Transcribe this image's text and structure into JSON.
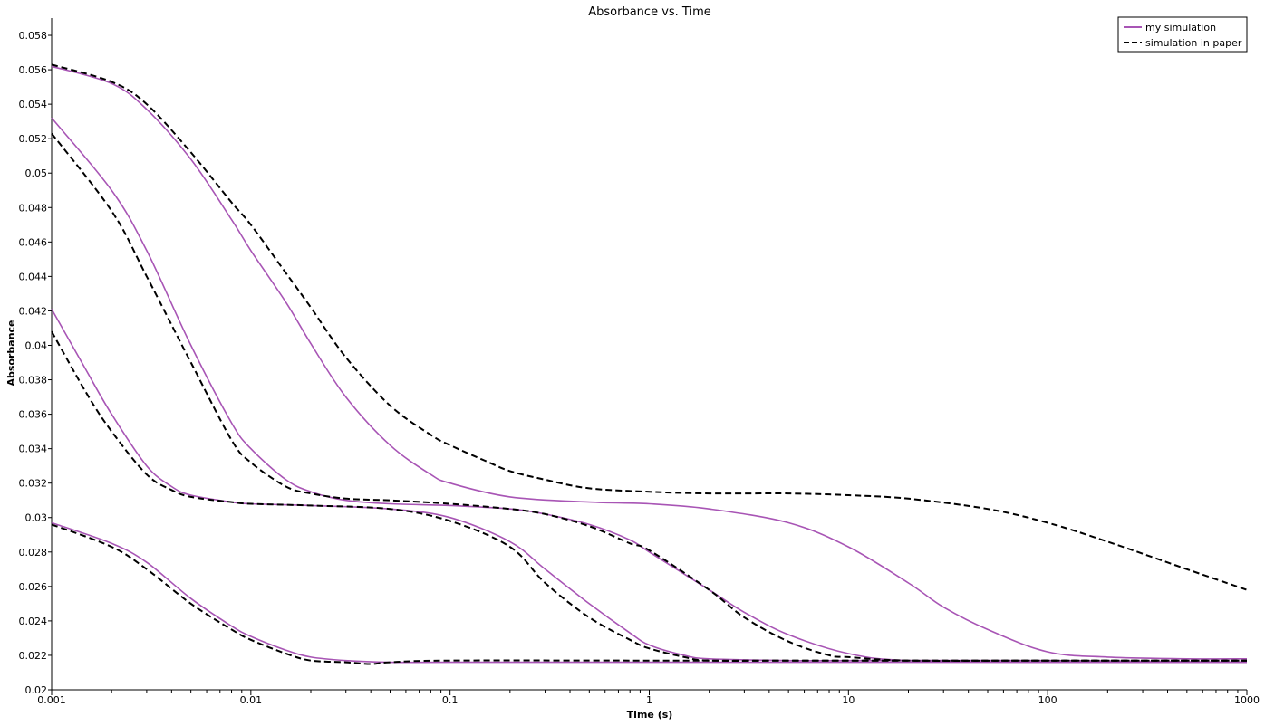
{
  "chart_data": {
    "type": "line",
    "title": "Absorbance vs. Time",
    "xlabel": "Time (s)",
    "ylabel": "Absorbance",
    "xscale": "log",
    "xlim": [
      0.001,
      1000
    ],
    "ylim": [
      0.02,
      0.059
    ],
    "x_ticks": [
      "0.001",
      "0.01",
      "0.1",
      "1",
      "10",
      "100",
      "1000"
    ],
    "y_ticks": [
      "0.02",
      "0.022",
      "0.024",
      "0.026",
      "0.028",
      "0.03",
      "0.032",
      "0.034",
      "0.036",
      "0.038",
      "0.04",
      "0.042",
      "0.044",
      "0.046",
      "0.048",
      "0.05",
      "0.052",
      "0.054",
      "0.056",
      "0.058"
    ],
    "grid": false,
    "legend": {
      "position": "top-right",
      "entries": [
        {
          "name": "my simulation",
          "color": "#a855b5",
          "style": "solid"
        },
        {
          "name": "simulation in paper",
          "color": "#000000",
          "style": "dashed"
        }
      ]
    },
    "series": [
      {
        "group": "my simulation",
        "color": "#a855b5",
        "style": "solid",
        "x": [
          0.001,
          0.002,
          0.003,
          0.005,
          0.008,
          0.01,
          0.015,
          0.02,
          0.03,
          0.05,
          0.08,
          0.1,
          0.2,
          0.5,
          1,
          2,
          5,
          10,
          20,
          30,
          50,
          100,
          200,
          500,
          1000
        ],
        "y": [
          0.0562,
          0.0552,
          0.0537,
          0.0508,
          0.0473,
          0.0455,
          0.0425,
          0.0401,
          0.037,
          0.0342,
          0.0325,
          0.032,
          0.0312,
          0.0309,
          0.0308,
          0.0305,
          0.0297,
          0.0283,
          0.0262,
          0.0248,
          0.0235,
          0.0222,
          0.0219,
          0.0218,
          0.0218
        ]
      },
      {
        "group": "my simulation",
        "color": "#a855b5",
        "style": "solid",
        "x": [
          0.001,
          0.002,
          0.003,
          0.005,
          0.008,
          0.01,
          0.015,
          0.02,
          0.03,
          0.05,
          0.1,
          0.2,
          0.3,
          0.5,
          0.8,
          1,
          2,
          3,
          5,
          10,
          20,
          100,
          1000
        ],
        "y": [
          0.0532,
          0.049,
          0.0455,
          0.04,
          0.0355,
          0.034,
          0.0322,
          0.0315,
          0.031,
          0.0308,
          0.0307,
          0.0305,
          0.0302,
          0.0296,
          0.0287,
          0.028,
          0.0258,
          0.0245,
          0.0232,
          0.0221,
          0.0217,
          0.0216,
          0.0216
        ]
      },
      {
        "group": "my simulation",
        "color": "#a855b5",
        "style": "solid",
        "x": [
          0.001,
          0.0015,
          0.002,
          0.003,
          0.004,
          0.005,
          0.008,
          0.01,
          0.02,
          0.05,
          0.1,
          0.2,
          0.3,
          0.5,
          0.8,
          1,
          1.5,
          2,
          5,
          10,
          100,
          1000
        ],
        "y": [
          0.0421,
          0.0385,
          0.036,
          0.033,
          0.0318,
          0.0313,
          0.0309,
          0.0308,
          0.0307,
          0.0305,
          0.03,
          0.0286,
          0.027,
          0.025,
          0.0233,
          0.0226,
          0.022,
          0.0218,
          0.0217,
          0.0217,
          0.0217,
          0.0216
        ]
      },
      {
        "group": "my simulation",
        "color": "#a855b5",
        "style": "solid",
        "x": [
          0.001,
          0.002,
          0.003,
          0.005,
          0.008,
          0.01,
          0.015,
          0.02,
          0.03,
          0.05,
          0.1,
          1,
          10,
          100,
          1000
        ],
        "y": [
          0.0297,
          0.0285,
          0.0274,
          0.0253,
          0.0237,
          0.0231,
          0.0223,
          0.0219,
          0.0217,
          0.0216,
          0.0216,
          0.0216,
          0.0216,
          0.0216,
          0.0216
        ]
      },
      {
        "group": "simulation in paper",
        "color": "#000000",
        "style": "dashed",
        "x": [
          0.001,
          0.002,
          0.003,
          0.005,
          0.008,
          0.01,
          0.015,
          0.02,
          0.03,
          0.05,
          0.08,
          0.1,
          0.15,
          0.2,
          0.3,
          0.5,
          1,
          2,
          5,
          10,
          20,
          50,
          100,
          200,
          500,
          1000
        ],
        "y": [
          0.0563,
          0.0553,
          0.054,
          0.0512,
          0.0483,
          0.047,
          0.0442,
          0.0422,
          0.0393,
          0.0365,
          0.0348,
          0.0342,
          0.0333,
          0.0327,
          0.0322,
          0.0317,
          0.0315,
          0.0314,
          0.0314,
          0.0313,
          0.0311,
          0.0305,
          0.0297,
          0.0286,
          0.027,
          0.0258
        ]
      },
      {
        "group": "simulation in paper",
        "color": "#000000",
        "style": "dashed",
        "x": [
          0.001,
          0.002,
          0.003,
          0.005,
          0.008,
          0.01,
          0.015,
          0.02,
          0.03,
          0.05,
          0.1,
          0.2,
          0.3,
          0.5,
          0.8,
          1,
          2,
          3,
          5,
          8,
          10,
          20,
          100,
          1000
        ],
        "y": [
          0.0523,
          0.0478,
          0.044,
          0.039,
          0.0345,
          0.0332,
          0.0318,
          0.0314,
          0.0311,
          0.031,
          0.0308,
          0.0305,
          0.0302,
          0.0295,
          0.0285,
          0.0281,
          0.0258,
          0.0242,
          0.0228,
          0.022,
          0.0219,
          0.0217,
          0.0217,
          0.0217
        ]
      },
      {
        "group": "simulation in paper",
        "color": "#000000",
        "style": "dashed",
        "x": [
          0.001,
          0.0015,
          0.002,
          0.003,
          0.004,
          0.005,
          0.008,
          0.01,
          0.02,
          0.05,
          0.1,
          0.2,
          0.3,
          0.5,
          0.8,
          1,
          1.5,
          2,
          5,
          10,
          100,
          1000
        ],
        "y": [
          0.0408,
          0.0372,
          0.035,
          0.0325,
          0.0316,
          0.0312,
          0.0309,
          0.0308,
          0.0307,
          0.0305,
          0.0298,
          0.0283,
          0.0262,
          0.0242,
          0.0229,
          0.0224,
          0.0219,
          0.0217,
          0.0217,
          0.0217,
          0.0217,
          0.0217
        ]
      },
      {
        "group": "simulation in paper",
        "color": "#000000",
        "style": "dashed",
        "x": [
          0.001,
          0.002,
          0.003,
          0.005,
          0.008,
          0.01,
          0.015,
          0.02,
          0.03,
          0.04,
          0.05,
          0.1,
          1,
          10,
          100,
          1000
        ],
        "y": [
          0.0296,
          0.0283,
          0.027,
          0.025,
          0.0235,
          0.0229,
          0.0221,
          0.0217,
          0.0216,
          0.0215,
          0.0216,
          0.0217,
          0.0217,
          0.0217,
          0.0217,
          0.0217
        ]
      }
    ]
  }
}
